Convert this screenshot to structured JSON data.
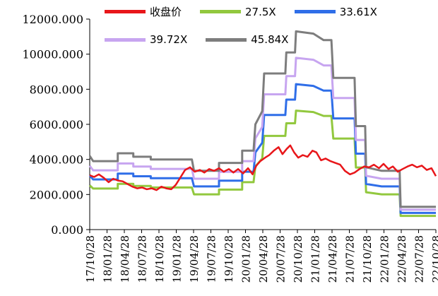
{
  "chart_data": {
    "type": "line",
    "ylim": [
      0,
      12000
    ],
    "y_ticks": [
      "0.000",
      "2000.000",
      "4000.000",
      "6000.000",
      "8000.000",
      "10000.000",
      "12000.000"
    ],
    "x_tick_labels": [
      "17/10/28",
      "18/01/28",
      "18/04/28",
      "18/07/28",
      "18/10/28",
      "19/01/28",
      "19/04/28",
      "19/07/28",
      "19/10/28",
      "20/01/28",
      "20/04/28",
      "20/07/28",
      "20/10/28",
      "21/01/28",
      "21/04/28",
      "21/07/28",
      "21/10/28",
      "22/01/28",
      "22/04/28",
      "22/07/28",
      "22/10/28"
    ],
    "x_range": [
      "2017-10-28",
      "2022-10-28"
    ],
    "grid": false,
    "legend": "top",
    "series": [
      {
        "name": "收盘价",
        "color": "#e8161a",
        "points": [
          [
            "2017-10-28",
            3100
          ],
          [
            "2017-11-20",
            3000
          ],
          [
            "2017-12-15",
            3150
          ],
          [
            "2018-01-10",
            2950
          ],
          [
            "2018-02-05",
            2700
          ],
          [
            "2018-03-01",
            2900
          ],
          [
            "2018-03-25",
            2800
          ],
          [
            "2018-04-20",
            2750
          ],
          [
            "2018-05-15",
            2600
          ],
          [
            "2018-06-10",
            2450
          ],
          [
            "2018-07-05",
            2350
          ],
          [
            "2018-08-01",
            2400
          ],
          [
            "2018-08-25",
            2300
          ],
          [
            "2018-09-20",
            2350
          ],
          [
            "2018-10-15",
            2250
          ],
          [
            "2018-11-10",
            2450
          ],
          [
            "2018-12-05",
            2350
          ],
          [
            "2019-01-01",
            2300
          ],
          [
            "2019-01-25",
            2550
          ],
          [
            "2019-02-20",
            3000
          ],
          [
            "2019-03-15",
            3400
          ],
          [
            "2019-04-10",
            3550
          ],
          [
            "2019-05-05",
            3300
          ],
          [
            "2019-06-01",
            3400
          ],
          [
            "2019-06-25",
            3250
          ],
          [
            "2019-07-20",
            3450
          ],
          [
            "2019-08-15",
            3350
          ],
          [
            "2019-09-10",
            3500
          ],
          [
            "2019-10-05",
            3300
          ],
          [
            "2019-11-01",
            3450
          ],
          [
            "2019-11-25",
            3250
          ],
          [
            "2019-12-20",
            3450
          ],
          [
            "2020-01-15",
            3200
          ],
          [
            "2020-02-10",
            3500
          ],
          [
            "2020-03-05",
            3150
          ],
          [
            "2020-03-25",
            3650
          ],
          [
            "2020-04-15",
            3900
          ],
          [
            "2020-05-10",
            4100
          ],
          [
            "2020-06-01",
            4250
          ],
          [
            "2020-06-25",
            4500
          ],
          [
            "2020-07-20",
            4700
          ],
          [
            "2020-08-10",
            4300
          ],
          [
            "2020-09-01",
            4600
          ],
          [
            "2020-09-20",
            4800
          ],
          [
            "2020-10-10",
            4400
          ],
          [
            "2020-11-01",
            4100
          ],
          [
            "2020-11-25",
            4250
          ],
          [
            "2020-12-20",
            4150
          ],
          [
            "2021-01-15",
            4500
          ],
          [
            "2021-02-05",
            4400
          ],
          [
            "2021-03-01",
            3950
          ],
          [
            "2021-03-25",
            4050
          ],
          [
            "2021-04-20",
            3900
          ],
          [
            "2021-05-15",
            3800
          ],
          [
            "2021-06-10",
            3700
          ],
          [
            "2021-07-05",
            3350
          ],
          [
            "2021-08-01",
            3150
          ],
          [
            "2021-08-25",
            3250
          ],
          [
            "2021-09-20",
            3450
          ],
          [
            "2021-10-15",
            3600
          ],
          [
            "2021-11-10",
            3550
          ],
          [
            "2021-12-05",
            3700
          ],
          [
            "2022-01-01",
            3500
          ],
          [
            "2022-01-25",
            3750
          ],
          [
            "2022-02-20",
            3450
          ],
          [
            "2022-03-15",
            3600
          ],
          [
            "2022-04-10",
            3300
          ],
          [
            "2022-05-05",
            3450
          ],
          [
            "2022-06-01",
            3600
          ],
          [
            "2022-06-25",
            3700
          ],
          [
            "2022-07-20",
            3550
          ],
          [
            "2022-08-15",
            3650
          ],
          [
            "2022-09-10",
            3400
          ],
          [
            "2022-10-05",
            3500
          ],
          [
            "2022-10-28",
            3050
          ]
        ]
      },
      {
        "name": "27.5X",
        "color": "#92c83e",
        "points": [
          [
            "2017-10-28",
            2520
          ],
          [
            "2017-11-15",
            2340
          ],
          [
            "2018-03-25",
            2340
          ],
          [
            "2018-03-25",
            2610
          ],
          [
            "2018-06-15",
            2610
          ],
          [
            "2018-06-15",
            2490
          ],
          [
            "2018-09-15",
            2490
          ],
          [
            "2018-09-15",
            2400
          ],
          [
            "2019-04-20",
            2400
          ],
          [
            "2019-05-01",
            2010
          ],
          [
            "2019-09-10",
            2010
          ],
          [
            "2019-09-10",
            2280
          ],
          [
            "2020-01-10",
            2280
          ],
          [
            "2020-01-10",
            2700
          ],
          [
            "2020-03-10",
            2700
          ],
          [
            "2020-03-20",
            3600
          ],
          [
            "2020-04-25",
            4050
          ],
          [
            "2020-05-05",
            5340
          ],
          [
            "2020-08-25",
            5340
          ],
          [
            "2020-08-30",
            6060
          ],
          [
            "2020-10-15",
            6060
          ],
          [
            "2020-10-20",
            6780
          ],
          [
            "2021-01-20",
            6700
          ],
          [
            "2021-03-15",
            6480
          ],
          [
            "2021-04-25",
            6480
          ],
          [
            "2021-05-05",
            5190
          ],
          [
            "2021-08-25",
            5190
          ],
          [
            "2021-09-01",
            3540
          ],
          [
            "2021-10-20",
            3540
          ],
          [
            "2021-10-25",
            2130
          ],
          [
            "2022-01-15",
            2010
          ],
          [
            "2022-04-20",
            2010
          ],
          [
            "2022-04-25",
            780
          ],
          [
            "2022-10-28",
            780
          ]
        ]
      },
      {
        "name": "33.61X",
        "color": "#2f6ee8",
        "points": [
          [
            "2017-10-28",
            3080
          ],
          [
            "2017-11-15",
            2860
          ],
          [
            "2018-03-25",
            2860
          ],
          [
            "2018-03-25",
            3190
          ],
          [
            "2018-06-15",
            3190
          ],
          [
            "2018-06-15",
            3040
          ],
          [
            "2018-09-15",
            3040
          ],
          [
            "2018-09-15",
            2930
          ],
          [
            "2019-04-20",
            2930
          ],
          [
            "2019-05-01",
            2460
          ],
          [
            "2019-09-10",
            2460
          ],
          [
            "2019-09-10",
            2790
          ],
          [
            "2020-01-10",
            2790
          ],
          [
            "2020-01-10",
            3300
          ],
          [
            "2020-03-10",
            3300
          ],
          [
            "2020-03-20",
            4400
          ],
          [
            "2020-04-25",
            4950
          ],
          [
            "2020-05-05",
            6530
          ],
          [
            "2020-08-25",
            6530
          ],
          [
            "2020-08-30",
            7410
          ],
          [
            "2020-10-15",
            7410
          ],
          [
            "2020-10-20",
            8290
          ],
          [
            "2021-01-20",
            8190
          ],
          [
            "2021-03-15",
            7920
          ],
          [
            "2021-04-25",
            7920
          ],
          [
            "2021-05-05",
            6340
          ],
          [
            "2021-08-25",
            6340
          ],
          [
            "2021-09-01",
            4330
          ],
          [
            "2021-10-20",
            4330
          ],
          [
            "2021-10-25",
            2600
          ],
          [
            "2022-01-15",
            2460
          ],
          [
            "2022-04-20",
            2460
          ],
          [
            "2022-04-25",
            950
          ],
          [
            "2022-10-28",
            950
          ]
        ]
      },
      {
        "name": "39.72X",
        "color": "#c7a5f0",
        "points": [
          [
            "2017-10-28",
            3640
          ],
          [
            "2017-11-15",
            3380
          ],
          [
            "2018-03-25",
            3380
          ],
          [
            "2018-03-25",
            3770
          ],
          [
            "2018-06-15",
            3770
          ],
          [
            "2018-06-15",
            3590
          ],
          [
            "2018-09-15",
            3590
          ],
          [
            "2018-09-15",
            3460
          ],
          [
            "2019-04-20",
            3460
          ],
          [
            "2019-05-01",
            2900
          ],
          [
            "2019-09-10",
            2900
          ],
          [
            "2019-09-10",
            3290
          ],
          [
            "2020-01-10",
            3290
          ],
          [
            "2020-01-10",
            3900
          ],
          [
            "2020-03-10",
            3900
          ],
          [
            "2020-03-20",
            5200
          ],
          [
            "2020-04-25",
            5850
          ],
          [
            "2020-05-05",
            7710
          ],
          [
            "2020-08-25",
            7710
          ],
          [
            "2020-08-30",
            8750
          ],
          [
            "2020-10-15",
            8750
          ],
          [
            "2020-10-20",
            9790
          ],
          [
            "2021-01-20",
            9680
          ],
          [
            "2021-03-15",
            9360
          ],
          [
            "2021-04-25",
            9360
          ],
          [
            "2021-05-05",
            7500
          ],
          [
            "2021-08-25",
            7500
          ],
          [
            "2021-09-01",
            5110
          ],
          [
            "2021-10-20",
            5110
          ],
          [
            "2021-10-25",
            3070
          ],
          [
            "2022-01-15",
            2900
          ],
          [
            "2022-04-20",
            2900
          ],
          [
            "2022-04-25",
            1130
          ],
          [
            "2022-10-28",
            1130
          ]
        ]
      },
      {
        "name": "45.84X",
        "color": "#7d7d7d",
        "points": [
          [
            "2017-10-28",
            4200
          ],
          [
            "2017-11-15",
            3900
          ],
          [
            "2018-03-25",
            3900
          ],
          [
            "2018-03-25",
            4350
          ],
          [
            "2018-06-15",
            4350
          ],
          [
            "2018-06-15",
            4150
          ],
          [
            "2018-09-15",
            4150
          ],
          [
            "2018-09-15",
            4000
          ],
          [
            "2019-04-20",
            4000
          ],
          [
            "2019-05-01",
            3350
          ],
          [
            "2019-09-10",
            3350
          ],
          [
            "2019-09-10",
            3800
          ],
          [
            "2020-01-10",
            3800
          ],
          [
            "2020-01-10",
            4500
          ],
          [
            "2020-03-10",
            4500
          ],
          [
            "2020-03-20",
            6000
          ],
          [
            "2020-04-25",
            6750
          ],
          [
            "2020-05-05",
            8900
          ],
          [
            "2020-08-25",
            8900
          ],
          [
            "2020-08-30",
            10100
          ],
          [
            "2020-10-15",
            10100
          ],
          [
            "2020-10-20",
            11300
          ],
          [
            "2021-01-20",
            11170
          ],
          [
            "2021-03-15",
            10800
          ],
          [
            "2021-04-25",
            10800
          ],
          [
            "2021-05-05",
            8650
          ],
          [
            "2021-08-25",
            8650
          ],
          [
            "2021-09-01",
            5900
          ],
          [
            "2021-10-20",
            5900
          ],
          [
            "2021-10-25",
            3550
          ],
          [
            "2022-01-15",
            3350
          ],
          [
            "2022-04-20",
            3350
          ],
          [
            "2022-04-25",
            1300
          ],
          [
            "2022-10-28",
            1300
          ]
        ]
      }
    ]
  }
}
